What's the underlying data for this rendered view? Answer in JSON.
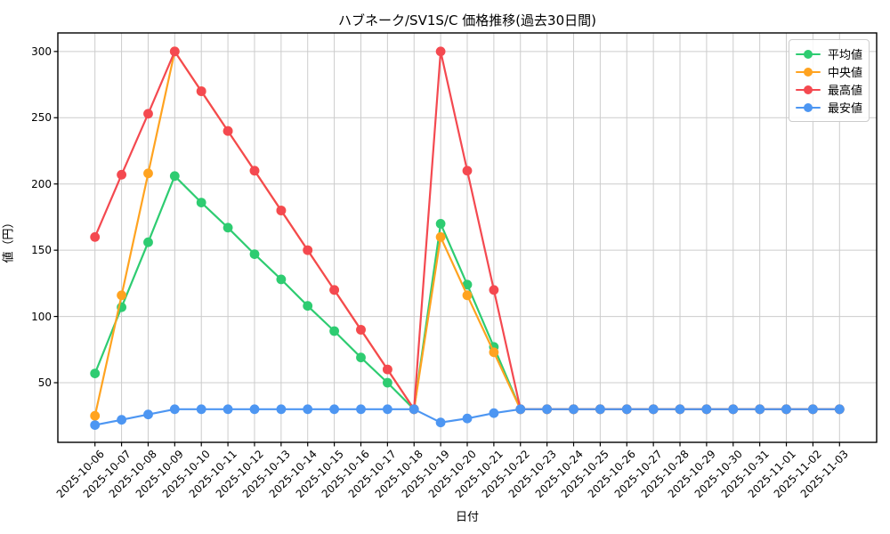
{
  "title": "ハブネーク/SV1S/C 価格推移(過去30日間)",
  "chart_data": {
    "type": "line",
    "title": "ハブネーク/SV1S/C 価格推移(過去30日間)",
    "xlabel": "日付",
    "ylabel": "値（円）",
    "grid": true,
    "legend_position": "upper right",
    "ylim": [
      5,
      314
    ],
    "yticks": [
      50,
      100,
      150,
      200,
      250,
      300
    ],
    "categories": [
      "2025-10-06",
      "2025-10-07",
      "2025-10-08",
      "2025-10-09",
      "2025-10-10",
      "2025-10-11",
      "2025-10-12",
      "2025-10-13",
      "2025-10-14",
      "2025-10-15",
      "2025-10-16",
      "2025-10-17",
      "2025-10-18",
      "2025-10-19",
      "2025-10-20",
      "2025-10-21",
      "2025-10-22",
      "2025-10-23",
      "2025-10-24",
      "2025-10-25",
      "2025-10-26",
      "2025-10-27",
      "2025-10-28",
      "2025-10-29",
      "2025-10-30",
      "2025-10-31",
      "2025-11-01",
      "2025-11-02",
      "2025-11-03"
    ],
    "series": [
      {
        "name": "平均値",
        "color": "#2ecc71",
        "values": [
          57,
          107,
          156,
          206,
          186,
          167,
          147,
          128,
          108,
          89,
          69,
          50,
          30,
          170,
          124,
          77,
          30,
          30,
          30,
          30,
          30,
          30,
          30,
          30,
          30,
          30,
          30,
          30,
          30
        ]
      },
      {
        "name": "中央値",
        "color": "#ffa320",
        "values": [
          25,
          116,
          208,
          300,
          270,
          240,
          210,
          180,
          150,
          120,
          90,
          60,
          30,
          160,
          116,
          73,
          30,
          30,
          30,
          30,
          30,
          30,
          30,
          30,
          30,
          30,
          30,
          30,
          30
        ]
      },
      {
        "name": "最高値",
        "color": "#f44950",
        "values": [
          160,
          207,
          253,
          300,
          270,
          240,
          210,
          180,
          150,
          120,
          90,
          60,
          30,
          300,
          210,
          120,
          30,
          30,
          30,
          30,
          30,
          30,
          30,
          30,
          30,
          30,
          30,
          30,
          30
        ]
      },
      {
        "name": "最安値",
        "color": "#4d96f2",
        "values": [
          18,
          22,
          26,
          30,
          30,
          30,
          30,
          30,
          30,
          30,
          30,
          30,
          30,
          20,
          23,
          27,
          30,
          30,
          30,
          30,
          30,
          30,
          30,
          30,
          30,
          30,
          30,
          30,
          30
        ]
      }
    ],
    "colors": {
      "grid": "#cccccc",
      "spine": "#000000",
      "background": "#ffffff"
    }
  }
}
